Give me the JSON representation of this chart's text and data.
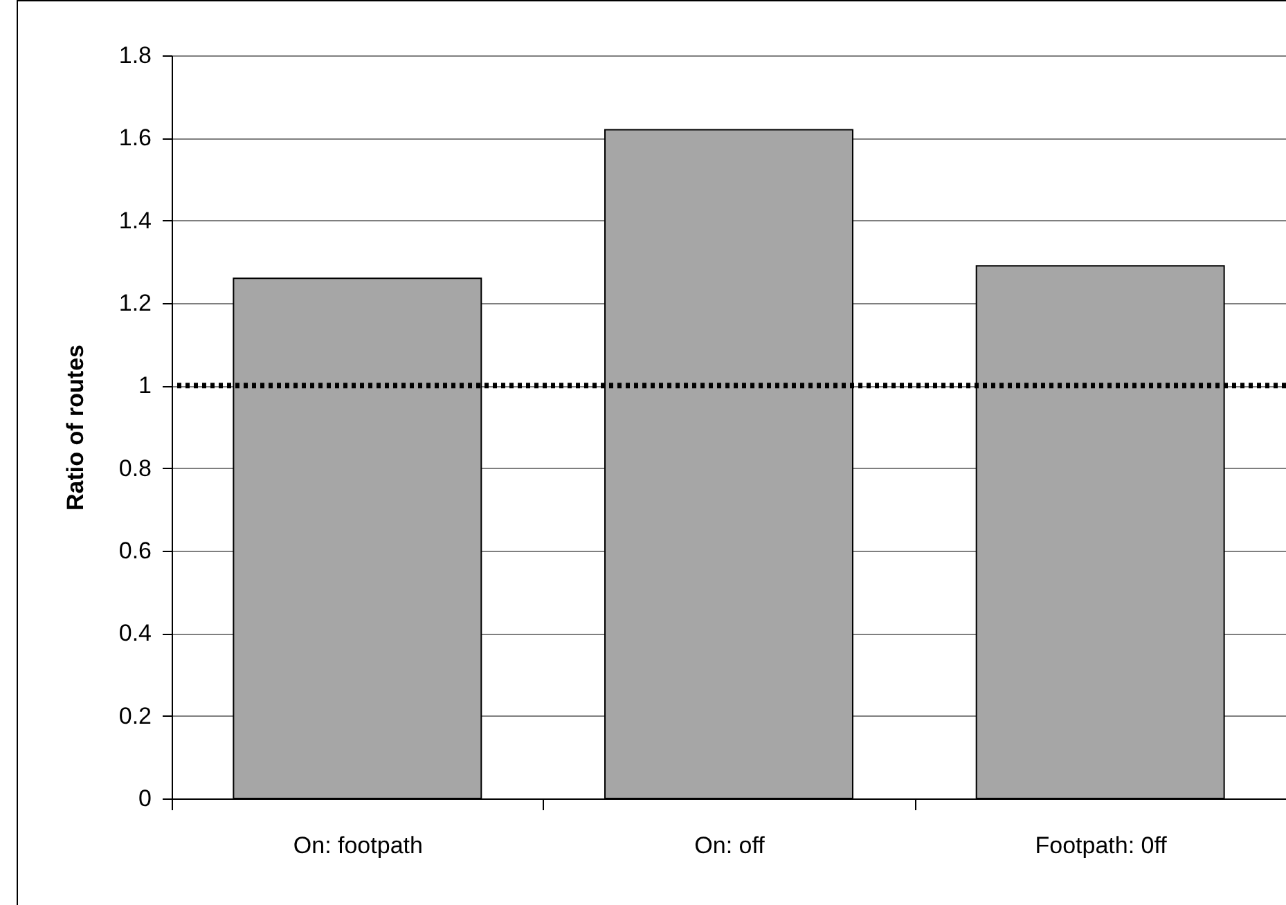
{
  "chart_data": {
    "type": "bar",
    "ylabel": "Ratio of routes",
    "categories": [
      "On: footpath",
      "On: off",
      "Footpath: 0ff"
    ],
    "values": [
      1.26,
      1.62,
      1.29
    ],
    "color": "#a6a6a6",
    "ylim": [
      0,
      1.8
    ],
    "yticks": [
      0,
      0.2,
      0.4,
      0.6,
      0.8,
      1,
      1.2,
      1.4,
      1.6,
      1.8
    ],
    "grid": "y",
    "ref_lines": [
      {
        "axis": "y",
        "value": 1,
        "color": "#000000",
        "line_style": "dotted"
      }
    ]
  }
}
